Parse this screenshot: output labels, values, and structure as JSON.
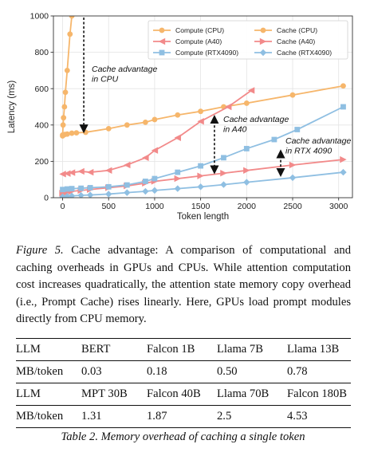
{
  "chart_data": {
    "type": "line",
    "title": "",
    "xlabel": "Token length",
    "ylabel": "Latency (ms)",
    "xlim": [
      -100,
      3150
    ],
    "ylim": [
      0,
      1000
    ],
    "xticks": [
      0,
      500,
      1000,
      1500,
      2000,
      2500,
      3000
    ],
    "yticks": [
      0,
      200,
      400,
      600,
      800,
      1000
    ],
    "grid": true,
    "legend_position": "top-right",
    "series": [
      {
        "name": "Compute (CPU)",
        "color": "#f6b66b",
        "marker": "circle",
        "x": [
          0,
          5,
          10,
          20,
          30,
          50,
          80,
          100
        ],
        "y": [
          340,
          400,
          440,
          500,
          580,
          700,
          900,
          1000
        ]
      },
      {
        "name": "Cache (CPU)",
        "color": "#f6b66b",
        "marker": "circle",
        "x": [
          0,
          25,
          50,
          100,
          150,
          250,
          500,
          700,
          900,
          1000,
          1250,
          1500,
          1750,
          2000,
          2500,
          3050
        ],
        "y": [
          345,
          348,
          350,
          355,
          357,
          360,
          380,
          400,
          415,
          430,
          455,
          475,
          500,
          520,
          565,
          615
        ]
      },
      {
        "name": "Compute (A40)",
        "color": "#f28a8a",
        "marker": "triangle-left",
        "x": [
          0,
          50,
          100,
          200,
          300,
          500,
          700,
          900,
          1000,
          1250,
          1500,
          1800,
          2050
        ],
        "y": [
          130,
          133,
          138,
          145,
          140,
          150,
          180,
          220,
          260,
          330,
          420,
          500,
          590
        ]
      },
      {
        "name": "Cache (A40)",
        "color": "#f28a8a",
        "marker": "triangle-right",
        "x": [
          0,
          50,
          100,
          200,
          300,
          500,
          700,
          900,
          1000,
          1250,
          1500,
          1750,
          2000,
          2500,
          3050
        ],
        "y": [
          25,
          30,
          35,
          40,
          45,
          55,
          65,
          80,
          90,
          105,
          120,
          135,
          150,
          180,
          210
        ]
      },
      {
        "name": "Compute (RTX4090)",
        "color": "#8fbfe2",
        "marker": "square",
        "x": [
          0,
          50,
          100,
          200,
          300,
          500,
          700,
          900,
          1000,
          1250,
          1500,
          1750,
          2000,
          2300,
          2550,
          3050
        ],
        "y": [
          45,
          48,
          50,
          52,
          55,
          60,
          70,
          90,
          105,
          140,
          175,
          220,
          270,
          320,
          375,
          500
        ]
      },
      {
        "name": "Cache (RTX4090)",
        "color": "#8fbfe2",
        "marker": "diamond",
        "x": [
          0,
          50,
          100,
          200,
          300,
          500,
          700,
          900,
          1000,
          1250,
          1500,
          1750,
          2000,
          2500,
          3050
        ],
        "y": [
          5,
          8,
          10,
          13,
          15,
          20,
          28,
          35,
          40,
          50,
          60,
          72,
          85,
          110,
          140
        ]
      }
    ],
    "annotations": [
      {
        "lines": [
          "Cache advantage",
          "in CPU"
        ],
        "arrow_x": 230,
        "arrow_from": 1000,
        "arrow_to": 355
      },
      {
        "lines": [
          "Cache advantage",
          "in A40"
        ],
        "arrow_x": 1650,
        "arrow_from": 455,
        "arrow_to": 130
      },
      {
        "lines": [
          "Cache advantage",
          "in RTX 4090"
        ],
        "arrow_x": 2370,
        "arrow_from": 265,
        "arrow_to": 115
      }
    ]
  },
  "figure_caption": {
    "label": "Figure 5.",
    "text": "Cache advantage: A comparison of computational and caching overheads in GPUs and CPUs. While attention computation cost increases quadratically, the attention state memory copy overhead (i.e., Prompt Cache) rises linearly. Here, GPUs load prompt modules directly from CPU memory."
  },
  "table": {
    "rows": [
      [
        "LLM",
        "BERT",
        "Falcon 1B",
        "Llama 7B",
        "Llama 13B"
      ],
      [
        "MB/token",
        "0.03",
        "0.18",
        "0.50",
        "0.78"
      ],
      [
        "LLM",
        "MPT 30B",
        "Falcon 40B",
        "Llama 70B",
        "Falcon 180B"
      ],
      [
        "MB/token",
        "1.31",
        "1.87",
        "2.5",
        "4.53"
      ]
    ],
    "caption": "Table 2. Memory overhead of caching a single token"
  }
}
